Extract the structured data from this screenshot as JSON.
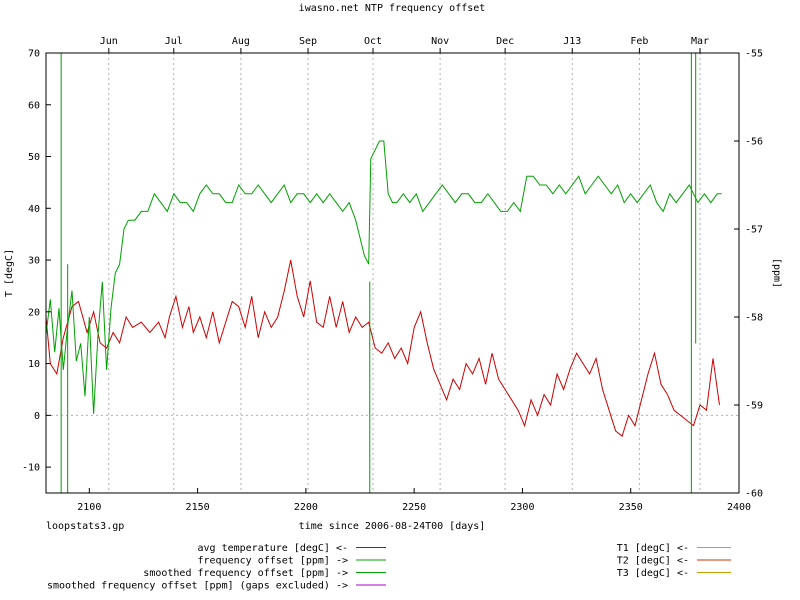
{
  "chart_data": {
    "type": "line",
    "title": "iwasno.net NTP frequency offset",
    "xlabel": "time since 2006-08-24T00 [days]",
    "ylabel": "T [degC]",
    "y2label": "[ppm]",
    "footer": "loopstats3.gp",
    "xlim": [
      2080,
      2400
    ],
    "ylim": [
      -15,
      70
    ],
    "y2lim": [
      -60,
      -55
    ],
    "x_ticks": [
      2100,
      2150,
      2200,
      2250,
      2300,
      2350,
      2400
    ],
    "y_ticks": [
      -10,
      0,
      10,
      20,
      30,
      40,
      50,
      60,
      70
    ],
    "y2_ticks": [
      -60,
      -59,
      -58,
      -57,
      -56,
      -55
    ],
    "x2_ticks": [
      {
        "label": "Jun",
        "x": 2109
      },
      {
        "label": "Jul",
        "x": 2139
      },
      {
        "label": "Aug",
        "x": 2170
      },
      {
        "label": "Sep",
        "x": 2201
      },
      {
        "label": "Oct",
        "x": 2231
      },
      {
        "label": "Nov",
        "x": 2262
      },
      {
        "label": "Dec",
        "x": 2292
      },
      {
        "label": "J13",
        "x": 2323
      },
      {
        "label": "Feb",
        "x": 2354
      },
      {
        "label": "Mar",
        "x": 2382
      }
    ],
    "grid": true,
    "series": [
      {
        "name": "avg temperature [degC] <-",
        "color": "#cc0000",
        "axis": "y",
        "x": [
          2080,
          2082,
          2085,
          2088,
          2092,
          2095,
          2099,
          2102,
          2105,
          2108,
          2111,
          2114,
          2117,
          2120,
          2124,
          2128,
          2132,
          2135,
          2137,
          2140,
          2143,
          2146,
          2148,
          2151,
          2154,
          2157,
          2160,
          2163,
          2166,
          2169,
          2172,
          2175,
          2178,
          2181,
          2184,
          2187,
          2190,
          2193,
          2196,
          2199,
          2202,
          2205,
          2208,
          2211,
          2214,
          2217,
          2220,
          2223,
          2226,
          2229,
          2232,
          2235,
          2238,
          2241,
          2244,
          2247,
          2250,
          2253,
          2256,
          2259,
          2262,
          2265,
          2268,
          2271,
          2274,
          2277,
          2280,
          2283,
          2286,
          2289,
          2292,
          2295,
          2298,
          2301,
          2304,
          2307,
          2310,
          2313,
          2316,
          2319,
          2322,
          2325,
          2328,
          2331,
          2334,
          2337,
          2340,
          2343,
          2346,
          2349,
          2352,
          2355,
          2358,
          2361,
          2364,
          2367,
          2370,
          2373,
          2376,
          2379,
          2382,
          2385,
          2388,
          2391
        ],
        "y": [
          19,
          10,
          8,
          15,
          21,
          22,
          16,
          20,
          14,
          13,
          16,
          14,
          19,
          17,
          18,
          16,
          18,
          15,
          19,
          23,
          17,
          21,
          16,
          19,
          15,
          20,
          14,
          18,
          22,
          21,
          17,
          23,
          15,
          20,
          17,
          19,
          24,
          30,
          23,
          19,
          26,
          18,
          17,
          23,
          17,
          22,
          16,
          19,
          17,
          18,
          13,
          12,
          14,
          11,
          13,
          10,
          17,
          20,
          14,
          9,
          6,
          3,
          7,
          5,
          10,
          8,
          11,
          6,
          12,
          7,
          5,
          3,
          1,
          -2,
          3,
          0,
          4,
          2,
          8,
          5,
          9,
          12,
          10,
          8,
          11,
          5,
          1,
          -3,
          -4,
          0,
          -2,
          3,
          8,
          12,
          6,
          4,
          1,
          0,
          -1,
          -2,
          2,
          1,
          11,
          2
        ],
        "values": [
          19,
          10,
          8,
          15,
          21,
          22,
          16,
          20,
          14,
          13,
          16,
          14,
          19,
          17,
          18,
          16,
          18,
          15,
          19,
          23,
          17,
          21,
          16,
          19,
          15,
          20,
          14,
          18,
          22,
          21,
          17,
          23,
          15,
          20,
          17,
          19,
          24,
          30,
          23,
          19,
          26,
          18,
          17,
          23,
          17,
          22,
          16,
          19,
          17,
          18,
          13,
          12,
          14,
          11,
          13,
          10,
          17,
          20,
          14,
          9,
          6,
          3,
          7,
          5,
          10,
          8,
          11,
          6,
          12,
          7,
          5,
          3,
          1,
          -2,
          3,
          0,
          4,
          2,
          8,
          5,
          9,
          12,
          10,
          8,
          11,
          5,
          1,
          -3,
          -4,
          0,
          -2,
          3,
          8,
          12,
          6,
          4,
          1,
          0,
          -1,
          -2,
          2,
          1,
          11,
          2
        ]
      },
      {
        "name": "frequency offset [ppm] ->",
        "color": "#00a000",
        "axis": "y2",
        "x": [
          2080,
          2082,
          2084,
          2086,
          2088,
          2090,
          2092,
          2094,
          2096,
          2098,
          2100,
          2102,
          2104,
          2106,
          2108,
          2110,
          2112,
          2114,
          2116,
          2118,
          2121,
          2124,
          2127,
          2130,
          2133,
          2136,
          2139,
          2142,
          2145,
          2148,
          2151,
          2154,
          2157,
          2160,
          2163,
          2166,
          2169,
          2172,
          2175,
          2178,
          2181,
          2184,
          2187,
          2190,
          2193,
          2196,
          2199,
          2202,
          2205,
          2208,
          2211,
          2214,
          2217,
          2220,
          2223,
          2225,
          2227,
          2229,
          2230,
          2232,
          2234,
          2236,
          2238,
          2240,
          2242,
          2245,
          2248,
          2251,
          2254,
          2257,
          2260,
          2263,
          2266,
          2269,
          2272,
          2275,
          2278,
          2281,
          2284,
          2287,
          2290,
          2293,
          2296,
          2299,
          2302,
          2305,
          2308,
          2311,
          2314,
          2317,
          2320,
          2323,
          2326,
          2329,
          2332,
          2335,
          2338,
          2341,
          2344,
          2347,
          2350,
          2353,
          2356,
          2359,
          2362,
          2365,
          2368,
          2371,
          2374,
          2377,
          2379,
          2381,
          2384,
          2387,
          2390,
          2392
        ],
        "y": [
          -58.2,
          -57.8,
          -58.4,
          -57.9,
          -58.6,
          -58.1,
          -57.7,
          -58.5,
          -58.3,
          -58.9,
          -58.0,
          -59.1,
          -58.2,
          -57.6,
          -58.6,
          -57.9,
          -57.5,
          -57.4,
          -57.0,
          -56.9,
          -56.9,
          -56.8,
          -56.8,
          -56.6,
          -56.7,
          -56.8,
          -56.6,
          -56.7,
          -56.7,
          -56.8,
          -56.6,
          -56.5,
          -56.6,
          -56.6,
          -56.7,
          -56.7,
          -56.5,
          -56.6,
          -56.6,
          -56.5,
          -56.6,
          -56.7,
          -56.6,
          -56.5,
          -56.7,
          -56.6,
          -56.6,
          -56.7,
          -56.6,
          -56.7,
          -56.6,
          -56.7,
          -56.8,
          -56.7,
          -56.9,
          -57.1,
          -57.3,
          -57.4,
          -56.2,
          -56.1,
          -56.0,
          -56.0,
          -56.6,
          -56.7,
          -56.7,
          -56.6,
          -56.7,
          -56.6,
          -56.8,
          -56.7,
          -56.6,
          -56.5,
          -56.6,
          -56.7,
          -56.6,
          -56.6,
          -56.7,
          -56.7,
          -56.6,
          -56.7,
          -56.8,
          -56.8,
          -56.7,
          -56.8,
          -56.4,
          -56.4,
          -56.5,
          -56.5,
          -56.6,
          -56.5,
          -56.6,
          -56.5,
          -56.4,
          -56.6,
          -56.5,
          -56.4,
          -56.5,
          -56.6,
          -56.5,
          -56.7,
          -56.6,
          -56.7,
          -56.6,
          -56.5,
          -56.7,
          -56.8,
          -56.6,
          -56.7,
          -56.6,
          -56.5,
          -56.6,
          -56.7,
          -56.6,
          -56.7,
          -56.6,
          -56.6
        ],
        "values": [
          -58.2,
          -57.8,
          -58.4,
          -57.9,
          -58.6,
          -58.1,
          -57.7,
          -58.5,
          -58.3,
          -58.9,
          -58.0,
          -59.1,
          -58.2,
          -57.6,
          -58.6,
          -57.9,
          -57.5,
          -57.4,
          -57.0,
          -56.9,
          -56.9,
          -56.8,
          -56.8,
          -56.6,
          -56.7,
          -56.8,
          -56.6,
          -56.7,
          -56.7,
          -56.8,
          -56.6,
          -56.5,
          -56.6,
          -56.6,
          -56.7,
          -56.7,
          -56.5,
          -56.6,
          -56.6,
          -56.5,
          -56.6,
          -56.7,
          -56.6,
          -56.5,
          -56.7,
          -56.6,
          -56.6,
          -56.7,
          -56.6,
          -56.7,
          -56.6,
          -56.7,
          -56.8,
          -56.7,
          -56.9,
          -57.1,
          -57.3,
          -57.4,
          -56.2,
          -56.1,
          -56.0,
          -56.0,
          -56.6,
          -56.7,
          -56.7,
          -56.6,
          -56.7,
          -56.6,
          -56.8,
          -56.7,
          -56.6,
          -56.5,
          -56.6,
          -56.7,
          -56.6,
          -56.6,
          -56.7,
          -56.7,
          -56.6,
          -56.7,
          -56.8,
          -56.8,
          -56.7,
          -56.8,
          -56.4,
          -56.4,
          -56.5,
          -56.5,
          -56.6,
          -56.5,
          -56.6,
          -56.5,
          -56.4,
          -56.6,
          -56.5,
          -56.4,
          -56.5,
          -56.6,
          -56.5,
          -56.7,
          -56.6,
          -56.7,
          -56.6,
          -56.5,
          -56.7,
          -56.8,
          -56.6,
          -56.7,
          -56.6,
          -56.5,
          -56.6,
          -56.7,
          -56.6,
          -56.7,
          -56.6,
          -56.6
        ],
        "spikes": [
          {
            "x": 2087,
            "y": [
              -60,
              -55
            ]
          },
          {
            "x": 2090,
            "y": [
              -60,
              -57.4
            ]
          },
          {
            "x": 2229.5,
            "y": [
              -60,
              -57.6
            ]
          },
          {
            "x": 2378,
            "y": [
              -60,
              -55
            ]
          },
          {
            "x": 2380,
            "y": [
              -58.3,
              -55
            ]
          }
        ]
      },
      {
        "name": "smoothed frequency offset [ppm] ->",
        "color": "#00a000",
        "axis": "y2",
        "x": [],
        "y": [],
        "values": []
      },
      {
        "name": "smoothed frequency offset [ppm] (gaps excluded) ->",
        "color": "#aa00cc",
        "axis": "y2",
        "x": [],
        "y": [],
        "values": []
      },
      {
        "name": "T1 [degC] <-",
        "color": "#00dddd",
        "axis": "y",
        "x": [],
        "y": [],
        "values": []
      },
      {
        "name": "T2 [degC] <-",
        "color": "#cc3300",
        "axis": "y",
        "x": [],
        "y": [],
        "values": []
      },
      {
        "name": "T3 [degC] <-",
        "color": "#cc9900",
        "axis": "y",
        "x": [],
        "y": [],
        "values": []
      }
    ]
  }
}
